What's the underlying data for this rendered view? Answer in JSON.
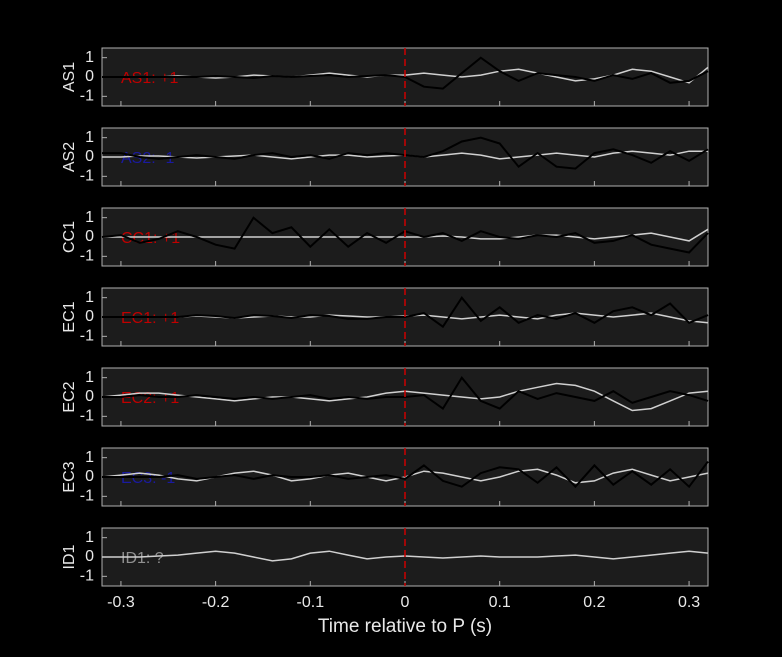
{
  "chart_data": [
    {
      "type": "line",
      "ylabel": "AS1",
      "label": "AS1: +1",
      "label_color": "#c00000",
      "xlim": [
        -0.32,
        0.32
      ],
      "ylim": [
        -1.5,
        1.5
      ],
      "yticks": [
        -1,
        0,
        1
      ],
      "xticks": [
        -0.3,
        -0.2,
        -0.1,
        0,
        0.1,
        0.2,
        0.3
      ],
      "vline": 0,
      "vline_color": "#cc0000",
      "x": [
        -0.32,
        -0.3,
        -0.28,
        -0.26,
        -0.24,
        -0.22,
        -0.2,
        -0.18,
        -0.16,
        -0.14,
        -0.12,
        -0.1,
        -0.08,
        -0.06,
        -0.04,
        -0.02,
        0,
        0.02,
        0.04,
        0.06,
        0.08,
        0.1,
        0.12,
        0.14,
        0.16,
        0.18,
        0.2,
        0.22,
        0.24,
        0.26,
        0.28,
        0.3,
        0.32
      ],
      "series": [
        {
          "color": "#d0d0d0",
          "values": [
            0,
            0,
            0,
            0,
            0.05,
            0,
            -0.05,
            0,
            0.1,
            0.05,
            0,
            0.1,
            0.2,
            0.1,
            0,
            0.1,
            0.1,
            0.2,
            0.1,
            0,
            0.1,
            0.3,
            0.4,
            0.2,
            0,
            -0.2,
            -0.1,
            0.1,
            0.4,
            0.3,
            0,
            -0.3,
            0.5
          ]
        },
        {
          "color": "#000000",
          "values": [
            0,
            0,
            0,
            0,
            0,
            0,
            0.05,
            0,
            -0.05,
            0.05,
            0,
            0.05,
            0.1,
            0,
            0.05,
            0.1,
            0,
            -0.5,
            -0.6,
            0.2,
            1.0,
            0.3,
            -0.2,
            0.2,
            0.1,
            0,
            -0.2,
            0.1,
            -0.1,
            0.2,
            -0.3,
            -0.2,
            0.3
          ]
        }
      ]
    },
    {
      "type": "line",
      "ylabel": "AS2",
      "label": "AS2: -1",
      "label_color": "#1a1aa0",
      "xlim": [
        -0.32,
        0.32
      ],
      "ylim": [
        -1.5,
        1.5
      ],
      "yticks": [
        -1,
        0,
        1
      ],
      "xticks": [
        -0.3,
        -0.2,
        -0.1,
        0,
        0.1,
        0.2,
        0.3
      ],
      "vline": 0,
      "vline_color": "#cc0000",
      "x": [
        -0.32,
        -0.3,
        -0.28,
        -0.26,
        -0.24,
        -0.22,
        -0.2,
        -0.18,
        -0.16,
        -0.14,
        -0.12,
        -0.1,
        -0.08,
        -0.06,
        -0.04,
        -0.02,
        0,
        0.02,
        0.04,
        0.06,
        0.08,
        0.1,
        0.12,
        0.14,
        0.16,
        0.18,
        0.2,
        0.22,
        0.24,
        0.26,
        0.28,
        0.3,
        0.32
      ],
      "series": [
        {
          "color": "#d0d0d0",
          "values": [
            0,
            0,
            0.05,
            0.05,
            0,
            -0.05,
            0,
            0.05,
            0.1,
            0,
            -0.1,
            0,
            0.1,
            0.1,
            0,
            0.05,
            0.1,
            0,
            0.1,
            0.2,
            0.1,
            -0.1,
            0,
            0.1,
            0.2,
            0.1,
            0,
            0.2,
            0.3,
            0.2,
            0.1,
            0.3,
            0.3
          ]
        },
        {
          "color": "#000000",
          "values": [
            0.2,
            0.2,
            0,
            -0.1,
            0,
            0.1,
            0,
            -0.1,
            0.1,
            0.2,
            0,
            0.1,
            -0.1,
            0.2,
            0.1,
            0.2,
            0.1,
            0,
            0.3,
            0.8,
            1.0,
            0.7,
            -0.5,
            0.2,
            -0.5,
            -0.6,
            0.2,
            0.4,
            0.1,
            -0.3,
            0.3,
            -0.2,
            0.4
          ]
        }
      ]
    },
    {
      "type": "line",
      "ylabel": "CC1",
      "label": "CC1: +1",
      "label_color": "#c00000",
      "xlim": [
        -0.32,
        0.32
      ],
      "ylim": [
        -1.5,
        1.5
      ],
      "yticks": [
        -1,
        0,
        1
      ],
      "xticks": [
        -0.3,
        -0.2,
        -0.1,
        0,
        0.1,
        0.2,
        0.3
      ],
      "vline": 0,
      "vline_color": "#cc0000",
      "x": [
        -0.32,
        -0.3,
        -0.28,
        -0.26,
        -0.24,
        -0.22,
        -0.2,
        -0.18,
        -0.16,
        -0.14,
        -0.12,
        -0.1,
        -0.08,
        -0.06,
        -0.04,
        -0.02,
        0,
        0.02,
        0.04,
        0.06,
        0.08,
        0.1,
        0.12,
        0.14,
        0.16,
        0.18,
        0.2,
        0.22,
        0.24,
        0.26,
        0.28,
        0.3,
        0.32
      ],
      "series": [
        {
          "color": "#d0d0d0",
          "values": [
            0,
            0,
            0,
            0,
            0,
            0,
            0,
            0,
            0,
            0,
            0,
            0,
            0,
            0,
            0,
            0,
            0,
            0,
            0.05,
            0,
            -0.1,
            -0.1,
            0,
            0.1,
            0.1,
            0,
            -0.1,
            0,
            0.1,
            0.2,
            0,
            -0.2,
            0.4
          ]
        },
        {
          "color": "#000000",
          "values": [
            0,
            0.1,
            -0.3,
            -0.1,
            0.3,
            0,
            -0.4,
            -0.6,
            1.0,
            0.2,
            0.5,
            -0.5,
            0.4,
            -0.5,
            0.2,
            -0.3,
            0.3,
            0,
            0.2,
            -0.2,
            0.3,
            0,
            -0.1,
            0.1,
            0,
            0.2,
            -0.3,
            -0.2,
            0.1,
            -0.4,
            -0.6,
            -0.8,
            0.2
          ]
        }
      ]
    },
    {
      "type": "line",
      "ylabel": "EC1",
      "label": "EC1: +1",
      "label_color": "#c00000",
      "xlim": [
        -0.32,
        0.32
      ],
      "ylim": [
        -1.5,
        1.5
      ],
      "yticks": [
        -1,
        0,
        1
      ],
      "xticks": [
        -0.3,
        -0.2,
        -0.1,
        0,
        0.1,
        0.2,
        0.3
      ],
      "vline": 0,
      "vline_color": "#cc0000",
      "x": [
        -0.32,
        -0.3,
        -0.28,
        -0.26,
        -0.24,
        -0.22,
        -0.2,
        -0.18,
        -0.16,
        -0.14,
        -0.12,
        -0.1,
        -0.08,
        -0.06,
        -0.04,
        -0.02,
        0,
        0.02,
        0.04,
        0.06,
        0.08,
        0.1,
        0.12,
        0.14,
        0.16,
        0.18,
        0.2,
        0.22,
        0.24,
        0.26,
        0.28,
        0.3,
        0.32
      ],
      "series": [
        {
          "color": "#d0d0d0",
          "values": [
            0,
            0,
            0,
            0,
            0,
            0.05,
            0,
            -0.05,
            0,
            0.05,
            0,
            0,
            0.1,
            0.05,
            0,
            0,
            0.05,
            0.1,
            0,
            -0.1,
            0,
            0.1,
            0,
            -0.1,
            0.1,
            0.2,
            0.1,
            0,
            0.1,
            0.2,
            0,
            -0.2,
            -0.3
          ]
        },
        {
          "color": "#000000",
          "values": [
            0,
            0,
            0,
            0,
            0,
            0.1,
            0.05,
            -0.05,
            0.1,
            0.05,
            -0.05,
            0.1,
            0.05,
            -0.1,
            -0.1,
            0,
            0,
            0.2,
            -0.5,
            1.0,
            -0.2,
            0.5,
            -0.3,
            0.1,
            -0.1,
            0.2,
            -0.3,
            0.3,
            0.5,
            0.1,
            0.7,
            -0.3,
            0.1
          ]
        }
      ]
    },
    {
      "type": "line",
      "ylabel": "EC2",
      "label": "EC2: +1",
      "label_color": "#c00000",
      "xlim": [
        -0.32,
        0.32
      ],
      "ylim": [
        -1.5,
        1.5
      ],
      "yticks": [
        -1,
        0,
        1
      ],
      "xticks": [
        -0.3,
        -0.2,
        -0.1,
        0,
        0.1,
        0.2,
        0.3
      ],
      "vline": 0,
      "vline_color": "#cc0000",
      "x": [
        -0.32,
        -0.3,
        -0.28,
        -0.26,
        -0.24,
        -0.22,
        -0.2,
        -0.18,
        -0.16,
        -0.14,
        -0.12,
        -0.1,
        -0.08,
        -0.06,
        -0.04,
        -0.02,
        0,
        0.02,
        0.04,
        0.06,
        0.08,
        0.1,
        0.12,
        0.14,
        0.16,
        0.18,
        0.2,
        0.22,
        0.24,
        0.26,
        0.28,
        0.3,
        0.32
      ],
      "series": [
        {
          "color": "#d0d0d0",
          "values": [
            0,
            0.1,
            0.2,
            0.2,
            0.1,
            0,
            -0.1,
            -0.2,
            -0.1,
            0,
            0,
            -0.1,
            -0.2,
            -0.1,
            0,
            0.2,
            0.3,
            0.2,
            0.1,
            0,
            -0.1,
            0,
            0.3,
            0.5,
            0.7,
            0.6,
            0.3,
            -0.2,
            -0.7,
            -0.6,
            -0.2,
            0.2,
            0.3
          ]
        },
        {
          "color": "#000000",
          "values": [
            0,
            0,
            0.1,
            0,
            0,
            0.1,
            0,
            -0.1,
            0,
            -0.1,
            0,
            0.1,
            -0.1,
            0,
            -0.1,
            0,
            0,
            0.1,
            -0.6,
            1.0,
            -0.2,
            -0.6,
            0.3,
            -0.1,
            0.2,
            0,
            -0.2,
            0.3,
            -0.3,
            0,
            0.3,
            0.1,
            -0.2
          ]
        }
      ]
    },
    {
      "type": "line",
      "ylabel": "EC3",
      "label": "EC3: -1",
      "label_color": "#1a1aa0",
      "xlim": [
        -0.32,
        0.32
      ],
      "ylim": [
        -1.5,
        1.5
      ],
      "yticks": [
        -1,
        0,
        1
      ],
      "xticks": [
        -0.3,
        -0.2,
        -0.1,
        0,
        0.1,
        0.2,
        0.3
      ],
      "vline": 0,
      "vline_color": "#cc0000",
      "x": [
        -0.32,
        -0.3,
        -0.28,
        -0.26,
        -0.24,
        -0.22,
        -0.2,
        -0.18,
        -0.16,
        -0.14,
        -0.12,
        -0.1,
        -0.08,
        -0.06,
        -0.04,
        -0.02,
        0,
        0.02,
        0.04,
        0.06,
        0.08,
        0.1,
        0.12,
        0.14,
        0.16,
        0.18,
        0.2,
        0.22,
        0.24,
        0.26,
        0.28,
        0.3,
        0.32
      ],
      "series": [
        {
          "color": "#d0d0d0",
          "values": [
            0,
            0.1,
            0.2,
            0.1,
            -0.1,
            -0.2,
            0,
            0.2,
            0.3,
            0.1,
            -0.2,
            -0.1,
            0.1,
            0.2,
            0,
            -0.2,
            0,
            0.3,
            0.2,
            0,
            -0.2,
            0,
            0.3,
            0.4,
            0.1,
            -0.3,
            -0.2,
            0.2,
            0.4,
            0.1,
            -0.2,
            0,
            0.2
          ]
        },
        {
          "color": "#000000",
          "values": [
            0,
            0,
            0,
            0,
            0.1,
            -0.1,
            0,
            0.1,
            -0.1,
            0.1,
            0,
            0,
            0.1,
            -0.1,
            0,
            0.1,
            -0.1,
            0.6,
            -0.2,
            -0.5,
            0.2,
            0.5,
            0.4,
            -0.3,
            0.5,
            -0.5,
            0.6,
            -0.4,
            0.3,
            -0.4,
            0.4,
            -0.5,
            0.8
          ]
        }
      ]
    },
    {
      "type": "line",
      "ylabel": "ID1",
      "label": "ID1: ?",
      "label_color": "#909090",
      "xlim": [
        -0.32,
        0.32
      ],
      "ylim": [
        -1.5,
        1.5
      ],
      "yticks": [
        -1,
        0,
        1
      ],
      "xticks": [
        -0.3,
        -0.2,
        -0.1,
        0,
        0.1,
        0.2,
        0.3
      ],
      "xlabel": "Time relative to P (s)",
      "vline": 0,
      "vline_color": "#cc0000",
      "x": [
        -0.32,
        -0.3,
        -0.28,
        -0.26,
        -0.24,
        -0.22,
        -0.2,
        -0.18,
        -0.16,
        -0.14,
        -0.12,
        -0.1,
        -0.08,
        -0.06,
        -0.04,
        -0.02,
        0,
        0.02,
        0.04,
        0.06,
        0.08,
        0.1,
        0.12,
        0.14,
        0.16,
        0.18,
        0.2,
        0.22,
        0.24,
        0.26,
        0.28,
        0.3,
        0.32
      ],
      "series": [
        {
          "color": "#d0d0d0",
          "values": [
            0,
            0,
            0,
            0.05,
            0.1,
            0.2,
            0.3,
            0.2,
            0,
            -0.2,
            -0.1,
            0.2,
            0.3,
            0.1,
            -0.1,
            0,
            0.05,
            0,
            -0.05,
            0,
            0.05,
            0,
            0,
            0,
            0.05,
            0.1,
            0,
            -0.1,
            0,
            0.1,
            0.2,
            0.3,
            0.2
          ]
        }
      ]
    }
  ]
}
